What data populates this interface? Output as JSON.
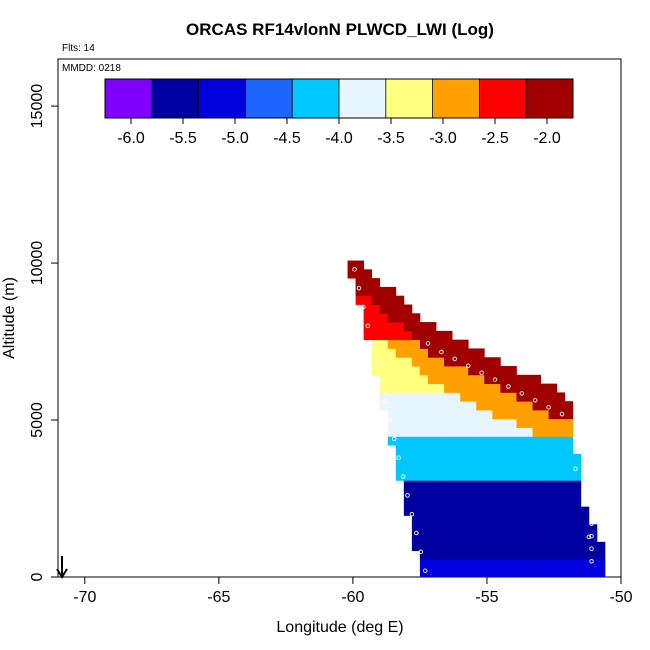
{
  "chart_data": {
    "type": "heatmap",
    "title": "ORCAS RF14vlonN PLWCD_LWI (Log)",
    "annotations": {
      "flights": "Flts: 14",
      "date": "MMDD: 0218"
    },
    "xlabel": "Longitude (deg E)",
    "ylabel": "Altitude (m)",
    "xlim": [
      -71,
      -50
    ],
    "ylim": [
      0,
      16500
    ],
    "xticks": [
      -70,
      -65,
      -60,
      -55,
      -50
    ],
    "yticks": [
      0,
      5000,
      10000,
      15000
    ],
    "grid": false,
    "colorbar": {
      "placement": "top-inside",
      "min": -6.25,
      "max": -1.75,
      "ticks": [
        -6.0,
        -5.5,
        -5.0,
        -4.5,
        -4.0,
        -3.5,
        -3.0,
        -2.5,
        -2.0
      ],
      "tick_labels": [
        "-6.0",
        "-5.5",
        "-5.0",
        "-4.5",
        "-4.0",
        "-3.5",
        "-3.0",
        "-2.5",
        "-2.0"
      ],
      "colors": [
        "#7f00ff",
        "#0000a0",
        "#0000dc",
        "#1e64ff",
        "#00c8ff",
        "#e6f5ff",
        "#ffff80",
        "#ffa000",
        "#ff0000",
        "#a00000"
      ]
    },
    "data_region": {
      "lon_range": [
        -60.2,
        -50.8
      ],
      "alt_range": [
        0,
        10200
      ],
      "bottom_left_lon": -57.4,
      "top_left_lon": -60.2,
      "upper_edge": [
        [
          -60.1,
          10200
        ],
        [
          -57.0,
          8000
        ],
        [
          -52.0,
          5800
        ],
        [
          -51.4,
          2500
        ],
        [
          -50.9,
          1200
        ]
      ],
      "layers": [
        {
          "alt": [
            0,
            500
          ],
          "value": -4.9
        },
        {
          "alt": [
            500,
            1300
          ],
          "value": -5.5
        },
        {
          "alt": [
            1300,
            2300
          ],
          "value": -5.6
        },
        {
          "alt": [
            2300,
            3000
          ],
          "value": -5.4
        },
        {
          "alt": [
            3000,
            4500
          ],
          "value": -4.4
        },
        {
          "alt": [
            4500,
            6000
          ],
          "value": -3.9
        },
        {
          "alt": [
            6000,
            7500
          ],
          "value": -3.3
        },
        {
          "alt": [
            7500,
            10200
          ],
          "value": -2.3
        }
      ]
    },
    "flight_track_marker": {
      "x": -70.8,
      "y": 0,
      "type": "arrow-down"
    }
  }
}
